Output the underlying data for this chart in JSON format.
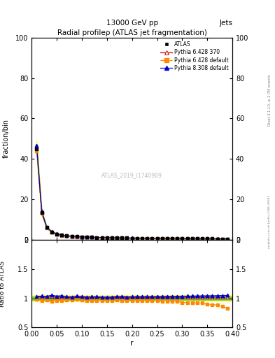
{
  "title": "Radial profileρ (ATLAS jet fragmentation)",
  "header_center": "13000 GeV pp",
  "header_right": "Jets",
  "ylabel_main": "fraction/bin",
  "ylabel_ratio": "Ratio to ATLAS",
  "xlabel": "r",
  "watermark": "ATLAS_2019_I1740909",
  "rivet_label": "Rivet 3.1.10, ≥ 2.7M events",
  "mcplots_label": "mcplots.cern.ch [arXiv:1306.3436]",
  "r_values": [
    0.01,
    0.02,
    0.03,
    0.04,
    0.05,
    0.06,
    0.07,
    0.08,
    0.09,
    0.1,
    0.11,
    0.12,
    0.13,
    0.14,
    0.15,
    0.16,
    0.17,
    0.18,
    0.19,
    0.2,
    0.21,
    0.22,
    0.23,
    0.24,
    0.25,
    0.26,
    0.27,
    0.28,
    0.29,
    0.3,
    0.31,
    0.32,
    0.33,
    0.34,
    0.35,
    0.36,
    0.37,
    0.38,
    0.39
  ],
  "atlas_data": [
    45.0,
    13.5,
    6.0,
    3.8,
    2.8,
    2.2,
    1.9,
    1.7,
    1.5,
    1.4,
    1.3,
    1.2,
    1.1,
    1.05,
    1.0,
    0.95,
    0.9,
    0.85,
    0.82,
    0.78,
    0.75,
    0.72,
    0.7,
    0.67,
    0.65,
    0.63,
    0.61,
    0.59,
    0.57,
    0.56,
    0.54,
    0.52,
    0.51,
    0.49,
    0.48,
    0.46,
    0.44,
    0.43,
    0.41
  ],
  "atlas_err": [
    1.5,
    0.5,
    0.2,
    0.15,
    0.1,
    0.08,
    0.07,
    0.06,
    0.05,
    0.05,
    0.04,
    0.04,
    0.04,
    0.04,
    0.03,
    0.03,
    0.03,
    0.03,
    0.03,
    0.03,
    0.03,
    0.03,
    0.02,
    0.02,
    0.02,
    0.02,
    0.02,
    0.02,
    0.02,
    0.02,
    0.02,
    0.02,
    0.02,
    0.02,
    0.02,
    0.02,
    0.02,
    0.02,
    0.02
  ],
  "pythia6_370": [
    46.0,
    13.8,
    6.1,
    3.9,
    2.85,
    2.25,
    1.92,
    1.72,
    1.52,
    1.42,
    1.32,
    1.22,
    1.12,
    1.06,
    1.01,
    0.96,
    0.91,
    0.86,
    0.83,
    0.79,
    0.76,
    0.73,
    0.71,
    0.68,
    0.66,
    0.64,
    0.62,
    0.6,
    0.58,
    0.57,
    0.55,
    0.53,
    0.52,
    0.5,
    0.49,
    0.47,
    0.45,
    0.44,
    0.42
  ],
  "pythia6_default": [
    44.0,
    13.0,
    5.8,
    3.6,
    2.7,
    2.1,
    1.85,
    1.65,
    1.48,
    1.36,
    1.25,
    1.15,
    1.06,
    1.01,
    0.96,
    0.91,
    0.87,
    0.82,
    0.79,
    0.75,
    0.72,
    0.69,
    0.67,
    0.64,
    0.62,
    0.6,
    0.58,
    0.56,
    0.54,
    0.52,
    0.5,
    0.48,
    0.47,
    0.45,
    0.43,
    0.41,
    0.39,
    0.37,
    0.34
  ],
  "pythia8_default": [
    46.5,
    14.0,
    6.2,
    4.0,
    2.9,
    2.3,
    1.95,
    1.74,
    1.56,
    1.44,
    1.33,
    1.23,
    1.13,
    1.07,
    1.02,
    0.97,
    0.93,
    0.88,
    0.84,
    0.8,
    0.77,
    0.74,
    0.72,
    0.69,
    0.67,
    0.65,
    0.63,
    0.61,
    0.59,
    0.58,
    0.56,
    0.54,
    0.53,
    0.51,
    0.5,
    0.48,
    0.46,
    0.45,
    0.43
  ],
  "ratio_p6_370": [
    1.022,
    1.022,
    1.017,
    1.026,
    1.018,
    1.023,
    1.011,
    1.012,
    1.013,
    1.014,
    1.015,
    1.017,
    1.018,
    1.01,
    1.01,
    1.011,
    1.011,
    1.012,
    1.012,
    1.013,
    1.013,
    1.014,
    1.014,
    1.015,
    1.015,
    1.016,
    1.016,
    1.017,
    1.018,
    1.018,
    1.019,
    1.019,
    1.02,
    1.02,
    1.021,
    1.022,
    1.023,
    1.023,
    1.024
  ],
  "ratio_p6_default": [
    0.978,
    0.963,
    0.967,
    0.947,
    0.964,
    0.955,
    0.974,
    0.971,
    0.987,
    0.971,
    0.962,
    0.958,
    0.964,
    0.962,
    0.96,
    0.958,
    0.967,
    0.965,
    0.963,
    0.962,
    0.96,
    0.958,
    0.957,
    0.955,
    0.954,
    0.952,
    0.951,
    0.949,
    0.947,
    0.929,
    0.926,
    0.923,
    0.922,
    0.918,
    0.896,
    0.891,
    0.886,
    0.861,
    0.829
  ],
  "ratio_p8_default": [
    1.033,
    1.037,
    1.033,
    1.053,
    1.036,
    1.045,
    1.026,
    1.024,
    1.04,
    1.029,
    1.023,
    1.025,
    1.027,
    1.019,
    1.02,
    1.021,
    1.033,
    1.035,
    1.024,
    1.026,
    1.027,
    1.028,
    1.029,
    1.03,
    1.031,
    1.032,
    1.033,
    1.034,
    1.035,
    1.036,
    1.037,
    1.038,
    1.039,
    1.041,
    1.042,
    1.043,
    1.045,
    1.047,
    1.049
  ],
  "atlas_ratio_band_lo": 0.97,
  "atlas_ratio_band_hi": 1.03,
  "atlas_ratio_band_lo2": 0.95,
  "atlas_ratio_band_hi2": 1.05,
  "color_atlas": "#000000",
  "color_p6_370": "#cc0000",
  "color_p6_default": "#ff8800",
  "color_p8_default": "#0000cc",
  "color_band_yellow": "#ffff88",
  "color_band_green": "#88cc44"
}
